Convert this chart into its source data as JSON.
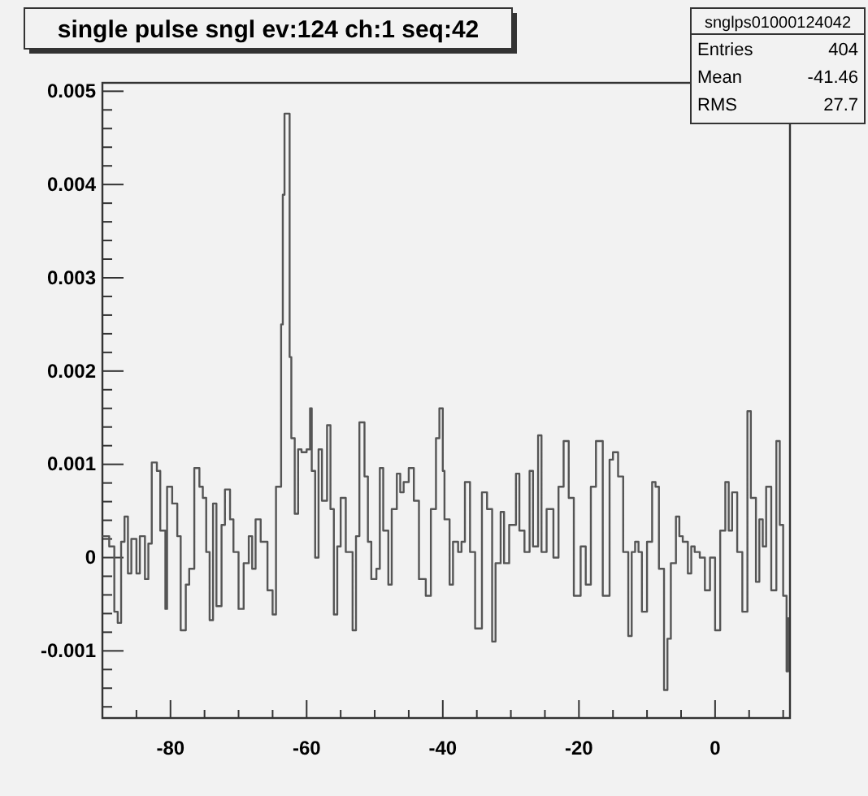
{
  "chart_data": {
    "type": "step",
    "title": "single pulse sngl ev:124 ch:1 seq:42",
    "annotations": [
      "snglps01000124042",
      "Entries",
      "404",
      "Mean",
      "-41.46",
      "RMS",
      "27.7"
    ],
    "color": "#555555",
    "line_style": "solid",
    "marker": "none",
    "grid": false,
    "xlim": [
      -90,
      11
    ],
    "ylim": [
      -0.00172,
      0.00509
    ],
    "xticks": [
      {
        "value": -85,
        "label": null
      },
      {
        "value": -80,
        "label": "-80"
      },
      {
        "value": -75,
        "label": null
      },
      {
        "value": -70,
        "label": null
      },
      {
        "value": -65,
        "label": null
      },
      {
        "value": -60,
        "label": "-60"
      },
      {
        "value": -55,
        "label": null
      },
      {
        "value": -50,
        "label": null
      },
      {
        "value": -45,
        "label": null
      },
      {
        "value": -40,
        "label": "-40"
      },
      {
        "value": -35,
        "label": null
      },
      {
        "value": -30,
        "label": null
      },
      {
        "value": -25,
        "label": null
      },
      {
        "value": -20,
        "label": "-20"
      },
      {
        "value": -15,
        "label": null
      },
      {
        "value": -10,
        "label": null
      },
      {
        "value": -5,
        "label": null
      },
      {
        "value": 0,
        "label": "0"
      },
      {
        "value": 5,
        "label": null
      },
      {
        "value": 10,
        "label": null
      }
    ],
    "yticks": [
      {
        "value": -0.0016,
        "label": null
      },
      {
        "value": -0.0014,
        "label": null
      },
      {
        "value": -0.0012,
        "label": null
      },
      {
        "value": -0.001,
        "label": "-0.001"
      },
      {
        "value": -0.0008,
        "label": null
      },
      {
        "value": -0.0006,
        "label": null
      },
      {
        "value": -0.0004,
        "label": null
      },
      {
        "value": -0.0002,
        "label": null
      },
      {
        "value": 0,
        "label": "0"
      },
      {
        "value": 0.0002,
        "label": null
      },
      {
        "value": 0.0004,
        "label": null
      },
      {
        "value": 0.0006,
        "label": null
      },
      {
        "value": 0.0008,
        "label": null
      },
      {
        "value": 0.001,
        "label": "0.001"
      },
      {
        "value": 0.0012,
        "label": null
      },
      {
        "value": 0.0014,
        "label": null
      },
      {
        "value": 0.0016,
        "label": null
      },
      {
        "value": 0.0018,
        "label": null
      },
      {
        "value": 0.002,
        "label": "0.002"
      },
      {
        "value": 0.0022,
        "label": null
      },
      {
        "value": 0.0024,
        "label": null
      },
      {
        "value": 0.0026,
        "label": null
      },
      {
        "value": 0.0028,
        "label": null
      },
      {
        "value": 0.003,
        "label": "0.003"
      },
      {
        "value": 0.0032,
        "label": null
      },
      {
        "value": 0.0034,
        "label": null
      },
      {
        "value": 0.0036,
        "label": null
      },
      {
        "value": 0.0038,
        "label": null
      },
      {
        "value": 0.004,
        "label": "0.004"
      },
      {
        "value": 0.0042,
        "label": null
      },
      {
        "value": 0.0044,
        "label": null
      },
      {
        "value": 0.0046,
        "label": null
      },
      {
        "value": 0.0048,
        "label": null
      },
      {
        "value": 0.005,
        "label": "0.005"
      }
    ],
    "x": [
      -90,
      -89,
      -88.25,
      -87.75,
      -87.25,
      -86.75,
      -86.25,
      -85.75,
      -85,
      -84.5,
      -83.75,
      -83.25,
      -82.75,
      -82,
      -81.5,
      -80.75,
      -80.5,
      -79.75,
      -79,
      -78.5,
      -77.75,
      -77.25,
      -76.5,
      -75.75,
      -75.25,
      -74.75,
      -74.25,
      -73.75,
      -73.25,
      -72.5,
      -72,
      -71.25,
      -70.75,
      -70,
      -69.25,
      -68.5,
      -68,
      -67.5,
      -66.75,
      -65.75,
      -65,
      -64.5,
      -63.75,
      -63.5,
      -63.25,
      -62.75,
      -62.5,
      -62.25,
      -61.75,
      -61.25,
      -60.75,
      -60,
      -59.5,
      -59.25,
      -58.75,
      -58.25,
      -57.75,
      -57,
      -56.5,
      -56,
      -55.5,
      -55,
      -54.25,
      -53.25,
      -52.75,
      -52.25,
      -51.5,
      -51,
      -50.5,
      -49.75,
      -49.25,
      -48.75,
      -48,
      -47.5,
      -46.75,
      -46.25,
      -45.75,
      -45,
      -44.25,
      -43.5,
      -42.5,
      -41.75,
      -41,
      -40.5,
      -40,
      -39.75,
      -39,
      -38.5,
      -37.75,
      -37.25,
      -36.75,
      -36,
      -35.25,
      -34.25,
      -33.5,
      -32.75,
      -32.25,
      -31.5,
      -31,
      -30.25,
      -29.25,
      -28.75,
      -28,
      -27.25,
      -26.75,
      -26,
      -25.5,
      -24.75,
      -23.75,
      -23,
      -22.25,
      -21.5,
      -20.75,
      -19.75,
      -19,
      -18.25,
      -17.5,
      -16.5,
      -15.5,
      -15,
      -14.25,
      -13.5,
      -12.75,
      -12.25,
      -11.75,
      -11.25,
      -10.75,
      -10,
      -9.25,
      -8.75,
      -8.25,
      -7.5,
      -7,
      -6.5,
      -5.75,
      -5.25,
      -4.75,
      -4,
      -3.5,
      -3,
      -2.25,
      -1.5,
      -0.75,
      0,
      0.75,
      1.5,
      2,
      2.5,
      3.25,
      4,
      4.75,
      5.25,
      6,
      6.5,
      7,
      7.5,
      8.25,
      9,
      9.5,
      10,
      10.5,
      10.75
    ],
    "values": [
      0.00023,
      0.00012,
      -0.00058,
      -0.0007,
      0.00017,
      0.00044,
      -0.00017,
      0.0002,
      -0.00017,
      0.00023,
      -0.00023,
      0.00015,
      0.00102,
      0.00093,
      0.00029,
      -0.00055,
      0.00076,
      0.00058,
      0.00023,
      -0.00078,
      -0.00029,
      -0.00012,
      0.00096,
      0.00076,
      0.00064,
      6e-05,
      -0.00067,
      0.00058,
      -0.00052,
      0.00035,
      0.00073,
      0.00041,
      6e-05,
      -0.00055,
      -6e-05,
      0.00023,
      -0.00012,
      0.00041,
      0.00017,
      -0.00035,
      -0.00061,
      0.00076,
      0.0025,
      0.00389,
      0.00476,
      0.00476,
      0.00215,
      0.00128,
      0.00047,
      0.00116,
      0.00113,
      0.00116,
      0.0016,
      0.00093,
      0,
      0.00116,
      0.00061,
      0.00142,
      0.00052,
      -0.00061,
      0.00012,
      0.00064,
      6e-05,
      -0.00078,
      0.00023,
      0.00145,
      0.00087,
      0.00017,
      -0.00023,
      -0.00012,
      0.00096,
      0.00029,
      -0.00029,
      0.00052,
      0.0009,
      0.0007,
      0.00081,
      0.00096,
      0.00061,
      -0.00023,
      -0.00041,
      0.00052,
      0.00128,
      0.0016,
      0.00093,
      0.00041,
      -0.00029,
      0.00017,
      6e-05,
      0.00017,
      0.00081,
      6e-05,
      -0.00076,
      0.0007,
      0.00052,
      -0.0009,
      -6e-05,
      0.00049,
      -6e-05,
      0.00035,
      0.0009,
      0.00029,
      6e-05,
      0.00093,
      0.00012,
      0.00131,
      6e-05,
      0.00052,
      0,
      0.00076,
      0.00125,
      0.00064,
      -0.00041,
      0.00012,
      -0.00029,
      0.00076,
      0.00125,
      -0.00041,
      0.00105,
      0.00113,
      0.00087,
      6e-05,
      -0.00084,
      6e-05,
      0.00017,
      6e-05,
      -0.00058,
      0.00017,
      0.00081,
      0.00076,
      -0.00012,
      -0.00142,
      -0.00087,
      -6e-05,
      0.00044,
      0.00023,
      0.00017,
      -0.00017,
      0.00012,
      6e-05,
      0,
      -0.00035,
      0,
      -0.00078,
      0.00029,
      0.00081,
      0.00029,
      0.0007,
      6e-05,
      -0.00058,
      0.00157,
      0.00064,
      -0.00026,
      0.00041,
      0.00012,
      0.00076,
      -0.00035,
      0.00125,
      0.00035,
      -0.00041,
      -0.00122,
      -0.00064
    ]
  }
}
